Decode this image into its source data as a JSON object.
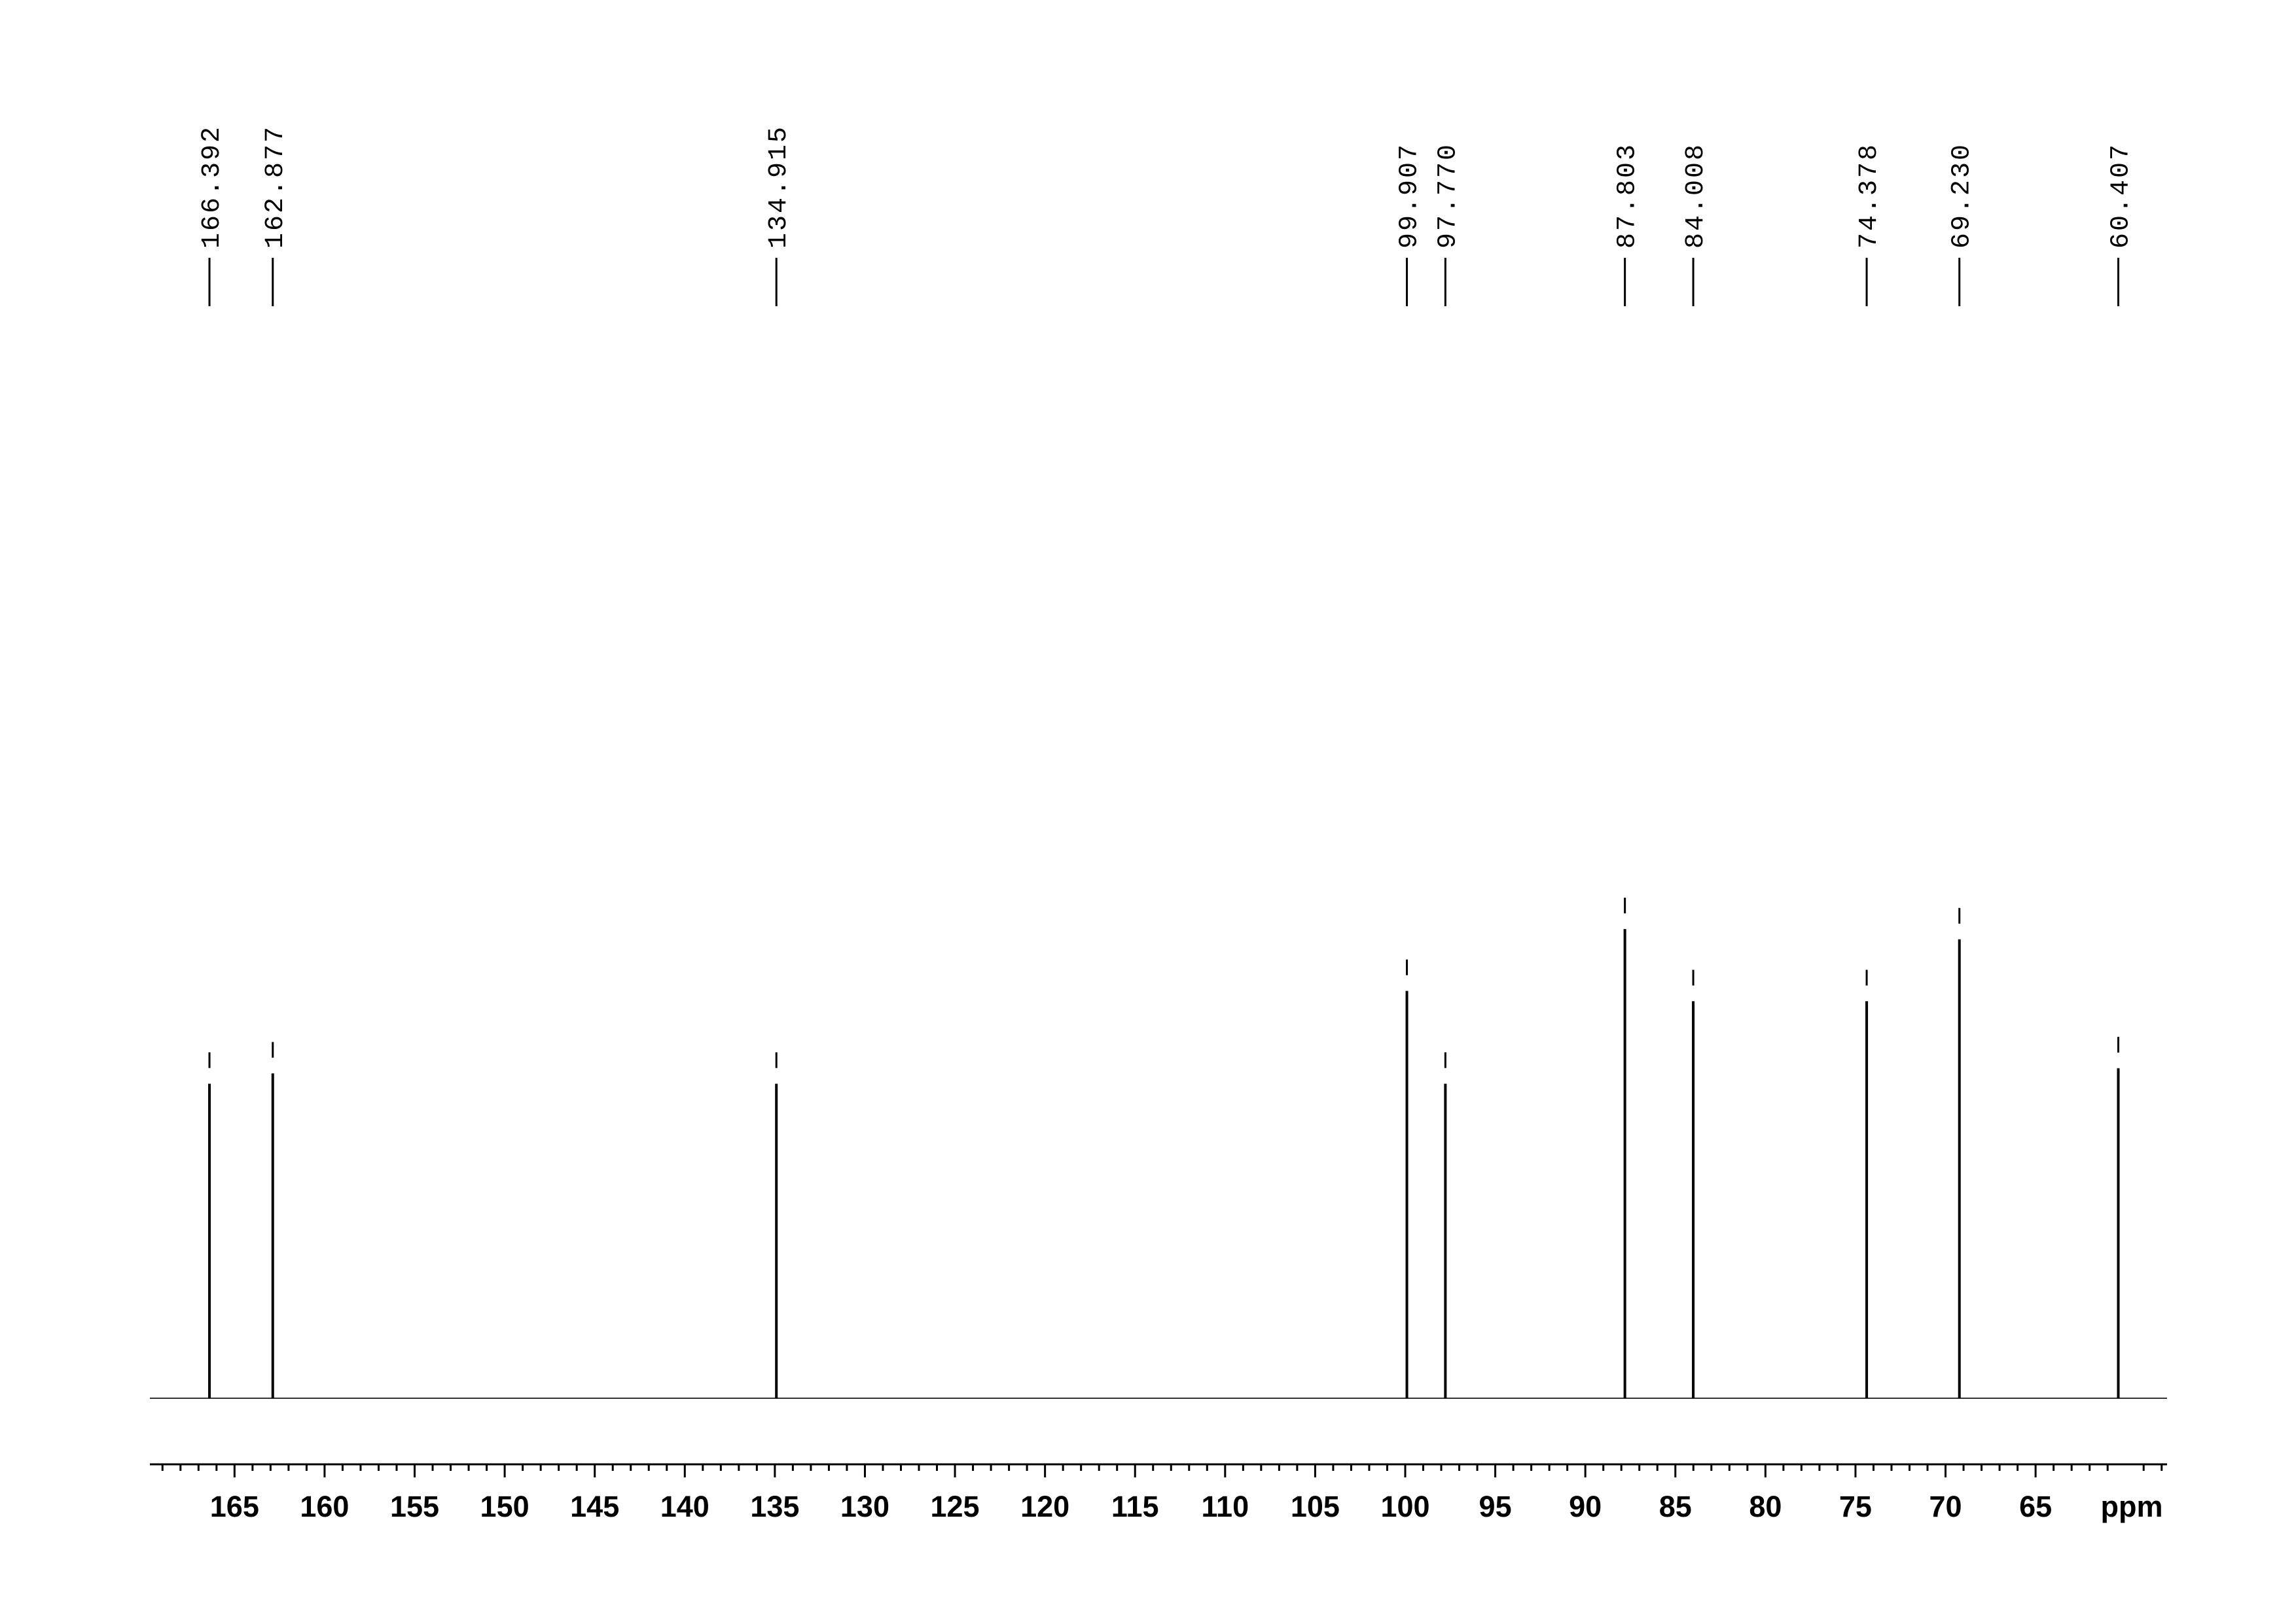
{
  "chart_data": {
    "type": "spectrum",
    "x": [
      166.392,
      162.877,
      134.915,
      99.907,
      97.77,
      87.803,
      84.008,
      74.378,
      69.23,
      60.407
    ],
    "x_labels": [
      "166.392",
      "162.877",
      "134.915",
      "99.907",
      "97.770",
      "87.803",
      "84.008",
      "74.378",
      "69.230",
      "60.407"
    ],
    "values": [
      61,
      63,
      61,
      79,
      61,
      91,
      77,
      77,
      89,
      64
    ],
    "color": "#000000",
    "xlim": [
      169.7,
      57.7
    ],
    "ylim": [
      0,
      100
    ],
    "xticks": [
      165,
      160,
      155,
      150,
      145,
      140,
      135,
      130,
      125,
      120,
      115,
      110,
      105,
      100,
      95,
      90,
      85,
      80,
      75,
      70,
      65
    ],
    "xminorticks": [
      58,
      59,
      61,
      62,
      63,
      64,
      66,
      67,
      68,
      69,
      71,
      72,
      73,
      74,
      76,
      77,
      78,
      79,
      81,
      82,
      83,
      84,
      86,
      87,
      88,
      89,
      91,
      92,
      93,
      94,
      96,
      97,
      98,
      99,
      101,
      102,
      103,
      104,
      106,
      107,
      108,
      109,
      111,
      112,
      113,
      114,
      116,
      117,
      118,
      119,
      121,
      122,
      123,
      124,
      126,
      127,
      128,
      129,
      131,
      132,
      133,
      134,
      136,
      137,
      138,
      139,
      141,
      142,
      143,
      144,
      146,
      147,
      148,
      149,
      151,
      152,
      153,
      154,
      156,
      157,
      158,
      159,
      161,
      162,
      163,
      164,
      166,
      167,
      168,
      169
    ],
    "xlabel": "ppm"
  }
}
